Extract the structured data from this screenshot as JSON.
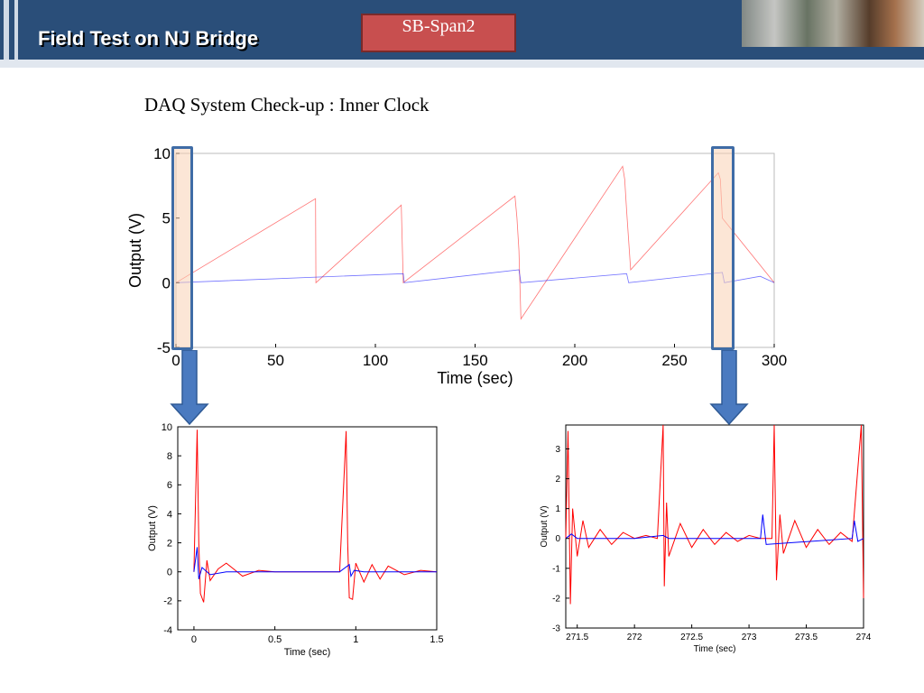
{
  "header": {
    "title": "Field Test on NJ Bridge",
    "badge": "SB-Span2"
  },
  "subtitle": "DAQ System Check-up : Inner Clock",
  "colors": {
    "header_bg": "#2a4e79",
    "badge": "#c84f4f",
    "series_red": "#ff0000",
    "series_blue": "#0000ff",
    "highlight": "#fad2b4",
    "arrow": "#3f6ca6"
  },
  "chart_data": [
    {
      "type": "line",
      "title": "",
      "xlabel": "Time (sec)",
      "ylabel": "Output (V)",
      "xlim": [
        0,
        300
      ],
      "ylim": [
        -5,
        10
      ],
      "xticks": [
        0,
        50,
        100,
        150,
        200,
        250,
        300
      ],
      "yticks": [
        -5,
        0,
        5,
        10
      ],
      "grid": false,
      "series": [
        {
          "values_desc": "",
          "x": [
            0,
            70,
            70.2,
            113,
            114,
            170,
            171,
            172,
            173,
            224,
            225,
            226,
            228,
            272,
            273,
            274,
            300
          ],
          "y": [
            0,
            6.5,
            0,
            6.0,
            0,
            6.7,
            5.0,
            2.5,
            -2.8,
            9.0,
            8.0,
            5.5,
            1.0,
            8.5,
            8.0,
            5.0,
            0
          ]
        },
        {
          "x": [
            0,
            114,
            114.5,
            172,
            173,
            226,
            227,
            274,
            275,
            293,
            300
          ],
          "y": [
            0,
            0.7,
            0,
            1.0,
            0,
            0.7,
            0,
            0.8,
            0,
            0.5,
            0
          ]
        }
      ]
    },
    {
      "type": "line",
      "title": "",
      "xlabel": "Time (sec)",
      "ylabel": "Output (V)",
      "xlim": [
        -0.1,
        1.5
      ],
      "ylim": [
        -4,
        10
      ],
      "xticks": [
        0,
        0.5,
        1,
        1.5
      ],
      "yticks": [
        -4,
        -2,
        0,
        2,
        4,
        6,
        8,
        10
      ],
      "grid": false,
      "series": [
        {
          "x": [
            0.0,
            0.02,
            0.03,
            0.04,
            0.06,
            0.08,
            0.1,
            0.15,
            0.2,
            0.3,
            0.4,
            0.5,
            0.6,
            0.7,
            0.8,
            0.9,
            0.94,
            0.95,
            0.96,
            0.98,
            1.0,
            1.05,
            1.1,
            1.15,
            1.2,
            1.3,
            1.4,
            1.5
          ],
          "y": [
            0,
            9.8,
            2.0,
            -1.5,
            -2.1,
            0.8,
            -0.6,
            0.2,
            0.6,
            -0.3,
            0.1,
            0,
            0,
            0,
            0,
            0,
            9.7,
            2.0,
            -1.8,
            -1.9,
            0.6,
            -0.7,
            0.5,
            -0.5,
            0.4,
            -0.2,
            0.1,
            0
          ]
        },
        {
          "x": [
            0.0,
            0.02,
            0.03,
            0.05,
            0.1,
            0.2,
            0.5,
            0.9,
            0.96,
            0.97,
            0.99,
            1.05,
            1.5
          ],
          "y": [
            0,
            1.7,
            -0.5,
            0.3,
            -0.2,
            0,
            0,
            0,
            0.5,
            -0.3,
            0.1,
            0,
            0
          ]
        }
      ]
    },
    {
      "type": "line",
      "title": "",
      "xlabel": "Time (sec)",
      "ylabel": "Output (V)",
      "xlim": [
        271.4,
        274.0
      ],
      "ylim": [
        -3,
        3.8
      ],
      "xticks": [
        271.5,
        272,
        272.5,
        273,
        273.5,
        274
      ],
      "yticks": [
        -3,
        -2,
        -1,
        0,
        1,
        2,
        3
      ],
      "grid": false,
      "series": [
        {
          "x": [
            271.4,
            271.42,
            271.44,
            271.46,
            271.5,
            271.55,
            271.6,
            271.7,
            271.8,
            271.9,
            272.0,
            272.1,
            272.2,
            272.25,
            272.26,
            272.28,
            272.3,
            272.4,
            272.5,
            272.6,
            272.7,
            272.8,
            272.9,
            273.0,
            273.1,
            273.2,
            273.22,
            273.24,
            273.27,
            273.3,
            273.4,
            273.5,
            273.6,
            273.7,
            273.8,
            273.9,
            273.98,
            274.0
          ],
          "y": [
            0,
            3.6,
            -2.2,
            1.0,
            -0.6,
            0.6,
            -0.3,
            0.3,
            -0.2,
            0.2,
            0,
            0.1,
            0,
            3.8,
            -1.6,
            1.2,
            -0.6,
            0.5,
            -0.3,
            0.3,
            -0.2,
            0.2,
            -0.1,
            0.1,
            0,
            0,
            3.8,
            -1.4,
            0.8,
            -0.5,
            0.6,
            -0.3,
            0.3,
            -0.2,
            0.2,
            -0.1,
            3.8,
            -2.0
          ]
        },
        {
          "x": [
            271.4,
            271.45,
            271.5,
            272.0,
            272.25,
            272.3,
            273.1,
            273.12,
            273.15,
            273.9,
            273.92,
            273.95,
            274.0
          ],
          "y": [
            0,
            0.15,
            0,
            0,
            0.1,
            0,
            0,
            0.8,
            -0.2,
            0,
            0.6,
            -0.1,
            0
          ]
        }
      ]
    }
  ]
}
